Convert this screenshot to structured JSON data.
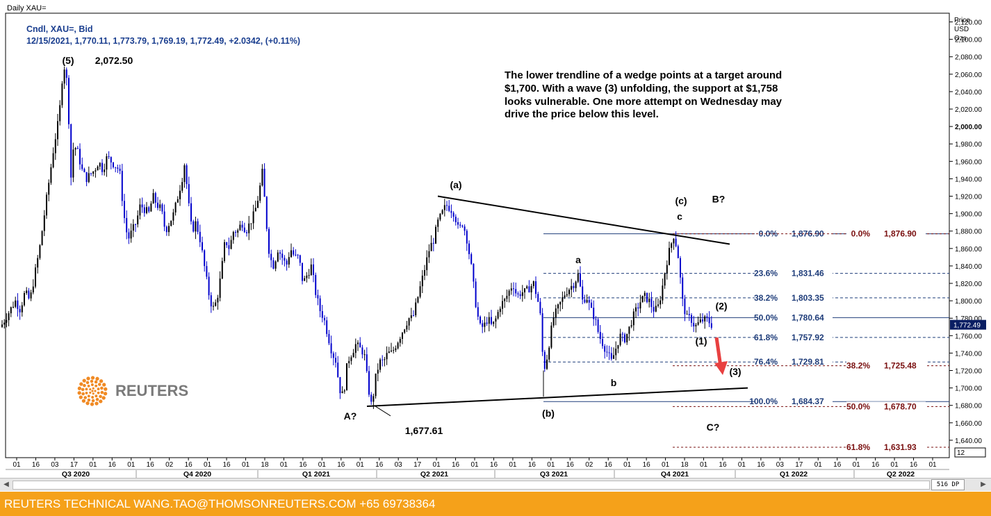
{
  "window_title": "Daily XAU=",
  "legend": {
    "line1": "Cndl, XAU=, Bid",
    "line2": "12/15/2021, 1,770.11, 1,773.79, 1,769.19, 1,772.49, +2.0342, (+0.11%)"
  },
  "axis_title": [
    "Price",
    "USD",
    "Ozs"
  ],
  "current_price": "1,772.49",
  "zoom_badge": "12",
  "scroll_badge": "516 DP",
  "commentary": [
    "The lower trendline of a wedge points at a target around",
    "$1,700. With a wave (3) unfolding, the support at $1,758",
    "looks vulnerable. One more attempt on Wednesday may",
    "drive the price below this level."
  ],
  "footer_text": "REUTERS TECHNICAL  WANG.TAO@THOMSONREUTERS.COM  +65 69738364",
  "logo_text": "REUTERS",
  "colors": {
    "candle": "#0000cc",
    "blue_text": "#1a3e8f",
    "fib_blue": "#1f3d7a",
    "fib_red": "#7a1010",
    "footer": "#f5a11a",
    "logo": "#f08a24"
  },
  "chart_data": {
    "type": "candlestick",
    "ylim": [
      1620,
      2130
    ],
    "y_ticks": [
      1640,
      1660,
      1680,
      1700,
      1720,
      1740,
      1760,
      1780,
      1800,
      1820,
      1840,
      1860,
      1880,
      1900,
      1920,
      1940,
      1960,
      1980,
      2000,
      2020,
      2040,
      2060,
      2080,
      2100,
      2120
    ],
    "y_tick_labels": [
      "1,640.00",
      "1,660.00",
      "1,680.00",
      "1,700.00",
      "1,720.00",
      "1,740.00",
      "1,760.00",
      "1,780.00",
      "1,800.00",
      "1,820.00",
      "1,840.00",
      "1,860.00",
      "1,880.00",
      "1,900.00",
      "1,920.00",
      "1,940.00",
      "1,960.00",
      "1,980.00",
      "2,000.00",
      "2,020.00",
      "2,040.00",
      "2,060.00",
      "2,080.00",
      "2,100.00",
      "2,120.00"
    ],
    "x_ticks": [
      "01",
      "16",
      "03",
      "17",
      "01",
      "16",
      "01",
      "16",
      "02",
      "16",
      "01",
      "16",
      "01",
      "18",
      "01",
      "16",
      "01",
      "16",
      "01",
      "16",
      "03",
      "17",
      "01",
      "16",
      "01",
      "16",
      "01",
      "16",
      "01",
      "16",
      "02",
      "16",
      "01",
      "16",
      "01",
      "18",
      "01",
      "16",
      "01",
      "16",
      "03",
      "17",
      "01",
      "16",
      "01",
      "16",
      "01",
      "16",
      "01"
    ],
    "quarters": [
      "Q3 2020",
      "Q4 2020",
      "Q1 2021",
      "Q2 2021",
      "Q3 2021",
      "Q4 2021",
      "Q1 2022",
      "Q2 2022"
    ],
    "path": [
      [
        1,
        1770
      ],
      [
        8,
        1780
      ],
      [
        15,
        1790
      ],
      [
        22,
        1800
      ],
      [
        29,
        1790
      ],
      [
        36,
        1810
      ],
      [
        43,
        1800
      ],
      [
        50,
        1830
      ],
      [
        57,
        1860
      ],
      [
        64,
        1900
      ],
      [
        71,
        1940
      ],
      [
        78,
        1980
      ],
      [
        85,
        2010
      ],
      [
        90,
        2060
      ],
      [
        94,
        2072.5
      ],
      [
        98,
        2030
      ],
      [
        102,
        1940
      ],
      [
        106,
        1980
      ],
      [
        112,
        1970
      ],
      [
        118,
        1950
      ],
      [
        124,
        1940
      ],
      [
        130,
        1945
      ],
      [
        136,
        1950
      ],
      [
        142,
        1960
      ],
      [
        148,
        1950
      ],
      [
        154,
        1965
      ],
      [
        160,
        1960
      ],
      [
        166,
        1955
      ],
      [
        172,
        1950
      ],
      [
        178,
        1900
      ],
      [
        184,
        1870
      ],
      [
        190,
        1880
      ],
      [
        196,
        1890
      ],
      [
        202,
        1910
      ],
      [
        208,
        1905
      ],
      [
        214,
        1900
      ],
      [
        220,
        1920
      ],
      [
        226,
        1910
      ],
      [
        232,
        1905
      ],
      [
        238,
        1880
      ],
      [
        244,
        1890
      ],
      [
        250,
        1900
      ],
      [
        256,
        1920
      ],
      [
        262,
        1940
      ],
      [
        266,
        1960
      ],
      [
        270,
        1920
      ],
      [
        276,
        1880
      ],
      [
        282,
        1890
      ],
      [
        288,
        1870
      ],
      [
        294,
        1840
      ],
      [
        300,
        1810
      ],
      [
        306,
        1790
      ],
      [
        312,
        1800
      ],
      [
        318,
        1830
      ],
      [
        324,
        1870
      ],
      [
        330,
        1860
      ],
      [
        336,
        1880
      ],
      [
        342,
        1880
      ],
      [
        348,
        1890
      ],
      [
        354,
        1880
      ],
      [
        360,
        1890
      ],
      [
        366,
        1900
      ],
      [
        372,
        1920
      ],
      [
        378,
        1950
      ],
      [
        382,
        1900
      ],
      [
        388,
        1850
      ],
      [
        394,
        1840
      ],
      [
        400,
        1860
      ],
      [
        406,
        1850
      ],
      [
        412,
        1840
      ],
      [
        418,
        1860
      ],
      [
        424,
        1850
      ],
      [
        430,
        1850
      ],
      [
        436,
        1820
      ],
      [
        442,
        1830
      ],
      [
        448,
        1840
      ],
      [
        454,
        1810
      ],
      [
        460,
        1790
      ],
      [
        466,
        1780
      ],
      [
        472,
        1760
      ],
      [
        478,
        1740
      ],
      [
        484,
        1730
      ],
      [
        488,
        1700
      ],
      [
        494,
        1690
      ],
      [
        500,
        1730
      ],
      [
        506,
        1740
      ],
      [
        512,
        1750
      ],
      [
        518,
        1745
      ],
      [
        524,
        1740
      ],
      [
        530,
        1700
      ],
      [
        535,
        1677.61
      ],
      [
        540,
        1710
      ],
      [
        546,
        1730
      ],
      [
        552,
        1730
      ],
      [
        558,
        1740
      ],
      [
        564,
        1740
      ],
      [
        570,
        1750
      ],
      [
        576,
        1760
      ],
      [
        582,
        1770
      ],
      [
        588,
        1780
      ],
      [
        594,
        1780
      ],
      [
        600,
        1800
      ],
      [
        606,
        1820
      ],
      [
        612,
        1840
      ],
      [
        618,
        1860
      ],
      [
        624,
        1870
      ],
      [
        630,
        1890
      ],
      [
        636,
        1900
      ],
      [
        642,
        1910
      ],
      [
        648,
        1906
      ],
      [
        654,
        1900
      ],
      [
        660,
        1880
      ],
      [
        666,
        1890
      ],
      [
        672,
        1870
      ],
      [
        678,
        1840
      ],
      [
        684,
        1800
      ],
      [
        690,
        1770
      ],
      [
        696,
        1770
      ],
      [
        702,
        1780
      ],
      [
        708,
        1770
      ],
      [
        714,
        1780
      ],
      [
        720,
        1795
      ],
      [
        726,
        1800
      ],
      [
        732,
        1810
      ],
      [
        738,
        1820
      ],
      [
        744,
        1805
      ],
      [
        750,
        1810
      ],
      [
        756,
        1810
      ],
      [
        762,
        1815
      ],
      [
        768,
        1820
      ],
      [
        774,
        1800
      ],
      [
        778,
        1780
      ],
      [
        782,
        1720
      ],
      [
        786,
        1730
      ],
      [
        790,
        1750
      ],
      [
        796,
        1780
      ],
      [
        802,
        1790
      ],
      [
        808,
        1800
      ],
      [
        814,
        1810
      ],
      [
        820,
        1815
      ],
      [
        826,
        1820
      ],
      [
        832,
        1830
      ],
      [
        838,
        1800
      ],
      [
        844,
        1805
      ],
      [
        850,
        1790
      ],
      [
        856,
        1780
      ],
      [
        862,
        1760
      ],
      [
        868,
        1750
      ],
      [
        874,
        1740
      ],
      [
        880,
        1730
      ],
      [
        886,
        1745
      ],
      [
        892,
        1760
      ],
      [
        898,
        1755
      ],
      [
        904,
        1765
      ],
      [
        910,
        1780
      ],
      [
        916,
        1790
      ],
      [
        922,
        1800
      ],
      [
        928,
        1805
      ],
      [
        934,
        1800
      ],
      [
        940,
        1790
      ],
      [
        946,
        1790
      ],
      [
        952,
        1810
      ],
      [
        958,
        1840
      ],
      [
        964,
        1860
      ],
      [
        970,
        1876.9
      ],
      [
        976,
        1850
      ],
      [
        982,
        1800
      ],
      [
        988,
        1780
      ],
      [
        994,
        1780
      ],
      [
        1000,
        1770
      ],
      [
        1006,
        1775
      ],
      [
        1012,
        1778
      ],
      [
        1018,
        1778
      ],
      [
        1024,
        1772.49
      ]
    ],
    "fib_levels_left": [
      {
        "label": "0.0%",
        "value": "1,876.90",
        "price": 1876.9,
        "dashed": false
      },
      {
        "label": "23.6%",
        "value": "1,831.46",
        "price": 1831.46,
        "dashed": true
      },
      {
        "label": "38.2%",
        "value": "1,803.35",
        "price": 1803.35,
        "dashed": true
      },
      {
        "label": "50.0%",
        "value": "1,780.64",
        "price": 1780.64,
        "dashed": false
      },
      {
        "label": "61.8%",
        "value": "1,757.92",
        "price": 1757.92,
        "dashed": true
      },
      {
        "label": "76.4%",
        "value": "1,729.81",
        "price": 1729.81,
        "dashed": true
      },
      {
        "label": "100.0%",
        "value": "1,684.37",
        "price": 1684.37,
        "dashed": false
      }
    ],
    "fib_levels_right": [
      {
        "label": "0.0%",
        "value": "1,876.90",
        "price": 1876.9
      },
      {
        "label": "38.2%",
        "value": "1,725.48",
        "price": 1725.48
      },
      {
        "label": "50.0%",
        "value": "1,678.70",
        "price": 1678.7
      },
      {
        "label": "61.8%",
        "value": "1,631.93",
        "price": 1631.93
      }
    ],
    "trendlines": [
      {
        "name": "upper-wedge-line",
        "from": [
          630,
          1920
        ],
        "to": [
          1050,
          1865
        ]
      },
      {
        "name": "lower-wedge-line",
        "from": [
          528,
          1679
        ],
        "to": [
          1076,
          1700
        ]
      }
    ],
    "annotations": [
      {
        "name": "wave-5-label",
        "text": "(5)",
        "x": 98,
        "price": 2072
      },
      {
        "name": "high-value-label",
        "text": "2,072.50",
        "x": 164,
        "price": 2072
      },
      {
        "name": "wave-a-paren-label",
        "text": "(a)",
        "x": 656,
        "price": 1929
      },
      {
        "name": "wave-c-paren-label",
        "text": "(c)",
        "x": 980,
        "price": 1911
      },
      {
        "name": "wave-b-query-label",
        "text": "B?",
        "x": 1034,
        "price": 1913
      },
      {
        "name": "wave-c-small-label",
        "text": "c",
        "x": 978,
        "price": 1893
      },
      {
        "name": "wave-a-small-label",
        "text": "a",
        "x": 832,
        "price": 1843
      },
      {
        "name": "wave-2-label",
        "text": "(2)",
        "x": 1038,
        "price": 1790
      },
      {
        "name": "wave-1-label",
        "text": "(1)",
        "x": 1009,
        "price": 1750
      },
      {
        "name": "wave-3-label",
        "text": "(3)",
        "x": 1058,
        "price": 1715
      },
      {
        "name": "wave-b-small-label",
        "text": "b",
        "x": 883,
        "price": 1702
      },
      {
        "name": "wave-b-paren-label",
        "text": "(b)",
        "x": 789,
        "price": 1667
      },
      {
        "name": "wave-a-query-label",
        "text": "A?",
        "x": 504,
        "price": 1664
      },
      {
        "name": "low-value-label",
        "text": "1,677.61",
        "x": 610,
        "price": 1647
      },
      {
        "name": "wave-c-query-label",
        "text": "C?",
        "x": 1026,
        "price": 1651
      }
    ]
  }
}
